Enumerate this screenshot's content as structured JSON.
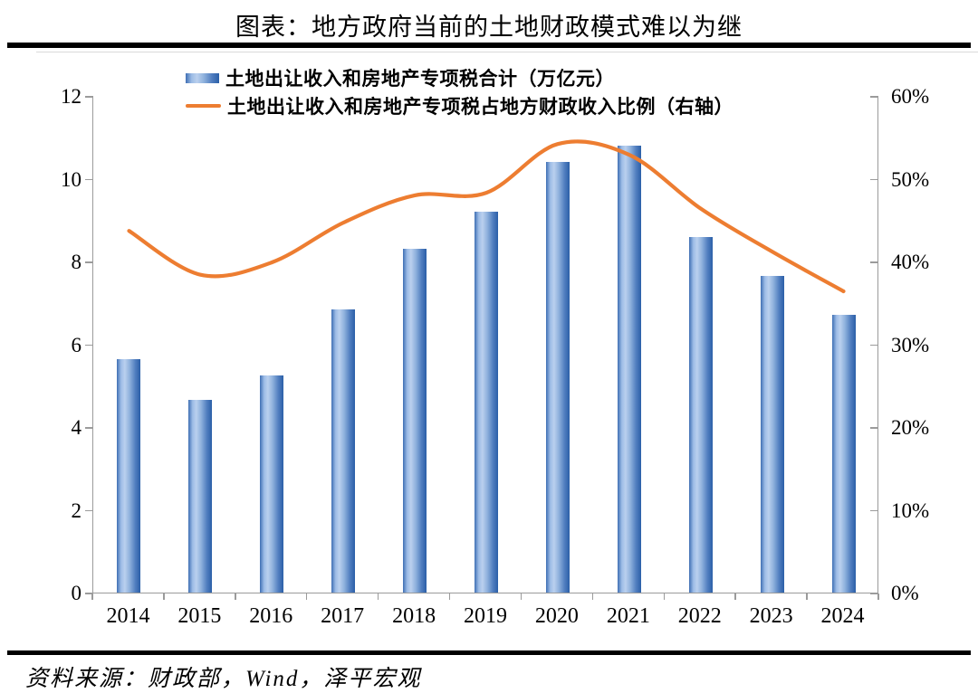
{
  "page": {
    "title": "图表：地方政府当前的土地财政模式难以为继",
    "source": "资料来源：财政部，Wind，泽平宏观"
  },
  "legend": {
    "items": [
      {
        "label": "土地出让收入和房地产专项税合计（万亿元）",
        "marker": "blue-gradient-bar-swatch"
      },
      {
        "label": "土地出让收入和房地产专项税占地方财政收入比例（右轴）",
        "marker": "orange-line-swatch"
      }
    ]
  },
  "colors": {
    "bar_dark": "#2B5FA8",
    "bar_light": "#BAD0EE",
    "line_orange": "#ED7D31",
    "axis_gray": "#9B9B9B",
    "rule_black": "#000000"
  },
  "chart_data": {
    "type": "bar",
    "subtype": "bar-and-smooth-line-dual-axis",
    "categories": [
      "2014",
      "2015",
      "2016",
      "2017",
      "2018",
      "2019",
      "2020",
      "2021",
      "2022",
      "2023",
      "2024"
    ],
    "series": [
      {
        "name": "土地出让收入和房地产专项税合计（万亿元）",
        "type": "bar",
        "axis": "left",
        "values": [
          5.65,
          4.65,
          5.25,
          6.85,
          8.3,
          9.2,
          10.4,
          10.8,
          8.6,
          7.65,
          6.7
        ]
      },
      {
        "name": "土地出让收入和房地产专项税占地方财政收入比例（右轴）",
        "type": "line",
        "axis": "right",
        "values": [
          43.8,
          38.5,
          40.0,
          44.8,
          48.1,
          48.4,
          54.3,
          53.0,
          46.5,
          41.3,
          36.5
        ]
      }
    ],
    "left_axis": {
      "min": 0,
      "max": 12,
      "ticks": [
        0,
        2,
        4,
        6,
        8,
        10,
        12
      ],
      "tick_labels": [
        "0",
        "2",
        "4",
        "6",
        "8",
        "10",
        "12"
      ]
    },
    "right_axis": {
      "min": 0,
      "max": 60,
      "ticks": [
        0,
        10,
        20,
        30,
        40,
        50,
        60
      ],
      "tick_labels": [
        "0%",
        "10%",
        "20%",
        "30%",
        "40%",
        "50%",
        "60%"
      ]
    },
    "grid": false,
    "legend_position": "top-inside-left"
  }
}
